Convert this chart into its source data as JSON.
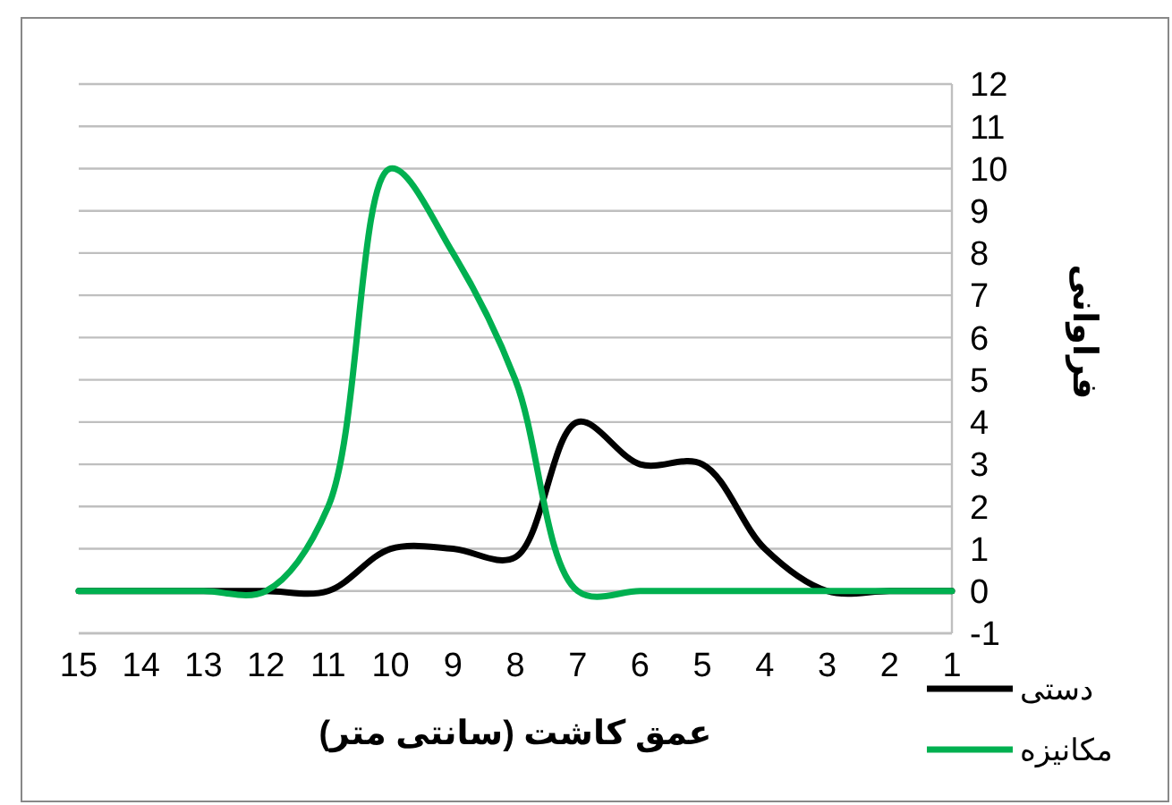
{
  "chart_data": {
    "type": "line",
    "xlabel": "عمق کاشت (سانتی متر)",
    "ylabel": "فراوانی",
    "x": [
      15,
      14,
      13,
      12,
      11,
      10,
      9,
      8,
      7,
      6,
      5,
      4,
      3,
      2,
      1
    ],
    "series": [
      {
        "name": "دستی",
        "color": "#000000",
        "values": [
          0,
          0,
          0,
          0,
          0,
          1,
          1,
          0.8,
          4,
          3,
          3,
          1,
          0,
          0,
          0
        ]
      },
      {
        "name": "مکانیزه",
        "color": "#00b050",
        "values": [
          0,
          0,
          0,
          0,
          2,
          10,
          8,
          5,
          0,
          0,
          0,
          0,
          0,
          0,
          0
        ]
      }
    ],
    "xlim": [
      15,
      1
    ],
    "xticks": [
      15,
      14,
      13,
      12,
      11,
      10,
      9,
      8,
      7,
      6,
      5,
      4,
      3,
      2,
      1
    ],
    "ylim": [
      -1,
      12
    ],
    "yticks": [
      -1,
      0,
      1,
      2,
      3,
      4,
      5,
      6,
      7,
      8,
      9,
      10,
      11,
      12
    ],
    "grid": "y",
    "legend": "bottom right",
    "marker": "none",
    "line_style": "solid"
  }
}
